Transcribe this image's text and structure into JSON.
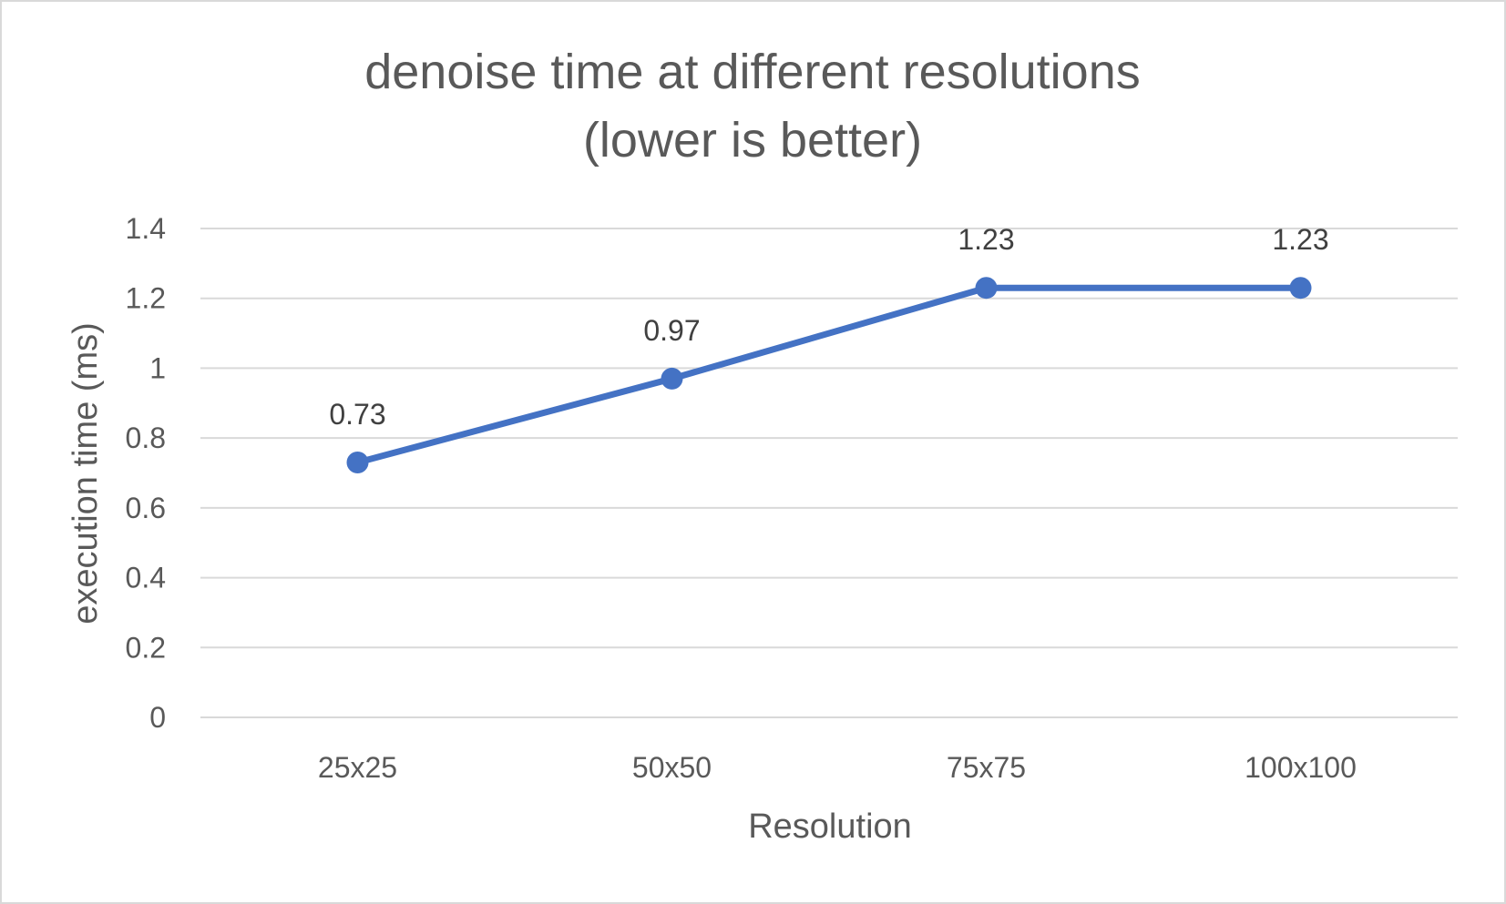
{
  "chart_data": {
    "type": "line",
    "title_lines": [
      "denoise time at different resolutions",
      "(lower is better)"
    ],
    "xlabel": "Resolution",
    "ylabel": "execution time (ms)",
    "categories": [
      "25x25",
      "50x50",
      "75x75",
      "100x100"
    ],
    "series": [
      {
        "values": [
          0.73,
          0.97,
          1.23,
          1.23
        ],
        "color": "#4472c4"
      }
    ],
    "data_labels": [
      "0.73",
      "0.97",
      "1.23",
      "1.23"
    ],
    "ylim": [
      0,
      1.4
    ],
    "yticks": [
      0,
      0.2,
      0.4,
      0.6,
      0.8,
      1,
      1.2,
      1.4
    ],
    "ytick_labels": [
      "0",
      "0.2",
      "0.4",
      "0.6",
      "0.8",
      "1",
      "1.2",
      "1.4"
    ],
    "grid": true,
    "legend": "none",
    "colors": {
      "gridline": "#d9d9d9",
      "text": "#595959",
      "series": "#4472c4"
    }
  }
}
